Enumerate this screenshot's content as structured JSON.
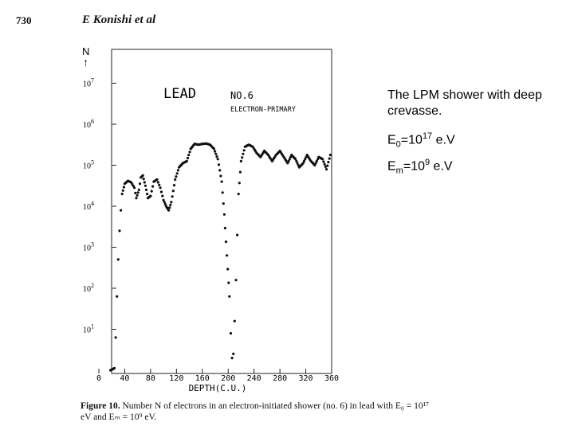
{
  "header": {
    "page_number": "730",
    "running_head": "E Konishi et al"
  },
  "side_note": {
    "line1": "The LPM shower with deep crevasse.",
    "e0_prefix": "E",
    "e0_sub": "0",
    "e0_mid": "=10",
    "e0_sup": "17",
    "e0_unit": " e.V",
    "em_prefix": "E",
    "em_sub": "m",
    "em_mid": "=10",
    "em_sup": "9",
    "em_unit": " e.V"
  },
  "caption": {
    "figure_label": "Figure 10.",
    "text": " Number N of electrons in an electron-initiated shower (no. 6) in lead with E₀ = 10¹⁷ eV and Eₘ = 10⁹ eV."
  },
  "chart_data": {
    "type": "scatter",
    "xlabel": "DEPTH(C.U.)",
    "ylabel": "N",
    "ylabel_arrow": "↑",
    "xlim": [
      0,
      360
    ],
    "ylim_log10": [
      0,
      7.5
    ],
    "x_ticks": [
      "0",
      "40",
      "80",
      "120",
      "160",
      "200",
      "240",
      "280",
      "320",
      "360"
    ],
    "y_ticks": [
      {
        "base": "10",
        "exp": "1"
      },
      {
        "base": "10",
        "exp": "2"
      },
      {
        "base": "10",
        "exp": "3"
      },
      {
        "base": "10",
        "exp": "4"
      },
      {
        "base": "10",
        "exp": "5"
      },
      {
        "base": "10",
        "exp": "6"
      },
      {
        "base": "10",
        "exp": "7"
      }
    ],
    "annotations": {
      "material": "LEAD",
      "shower_no": "NO.6",
      "primary": "ELECTRON-PRIMARY"
    },
    "log10_N_profile": [
      [
        18,
        0.0
      ],
      [
        24,
        0.05
      ],
      [
        26,
        0.8
      ],
      [
        28,
        1.8
      ],
      [
        30,
        2.7
      ],
      [
        32,
        3.4
      ],
      [
        34,
        3.9
      ],
      [
        36,
        4.3
      ],
      [
        40,
        4.55
      ],
      [
        45,
        4.62
      ],
      [
        50,
        4.58
      ],
      [
        55,
        4.45
      ],
      [
        58,
        4.2
      ],
      [
        62,
        4.4
      ],
      [
        65,
        4.7
      ],
      [
        68,
        4.75
      ],
      [
        72,
        4.5
      ],
      [
        76,
        4.2
      ],
      [
        80,
        4.25
      ],
      [
        85,
        4.6
      ],
      [
        90,
        4.65
      ],
      [
        95,
        4.45
      ],
      [
        100,
        4.15
      ],
      [
        104,
        4.0
      ],
      [
        108,
        3.9
      ],
      [
        112,
        4.1
      ],
      [
        118,
        4.65
      ],
      [
        124,
        4.95
      ],
      [
        130,
        5.05
      ],
      [
        136,
        5.1
      ],
      [
        142,
        5.4
      ],
      [
        148,
        5.52
      ],
      [
        154,
        5.5
      ],
      [
        160,
        5.52
      ],
      [
        166,
        5.53
      ],
      [
        172,
        5.5
      ],
      [
        178,
        5.4
      ],
      [
        184,
        5.15
      ],
      [
        190,
        4.6
      ],
      [
        194,
        3.8
      ],
      [
        198,
        2.8
      ],
      [
        202,
        1.8
      ],
      [
        204,
        0.9
      ],
      [
        206,
        0.3
      ],
      [
        208,
        0.4
      ],
      [
        210,
        1.2
      ],
      [
        212,
        2.2
      ],
      [
        214,
        3.3
      ],
      [
        216,
        4.3
      ],
      [
        220,
        5.1
      ],
      [
        226,
        5.45
      ],
      [
        232,
        5.5
      ],
      [
        238,
        5.45
      ],
      [
        244,
        5.3
      ],
      [
        250,
        5.2
      ],
      [
        256,
        5.35
      ],
      [
        262,
        5.25
      ],
      [
        268,
        5.1
      ],
      [
        274,
        5.25
      ],
      [
        280,
        5.35
      ],
      [
        286,
        5.2
      ],
      [
        292,
        5.05
      ],
      [
        298,
        5.25
      ],
      [
        304,
        5.15
      ],
      [
        310,
        4.95
      ],
      [
        316,
        5.05
      ],
      [
        322,
        5.25
      ],
      [
        328,
        5.1
      ],
      [
        334,
        5.0
      ],
      [
        340,
        5.2
      ],
      [
        346,
        5.15
      ],
      [
        352,
        4.9
      ],
      [
        358,
        5.25
      ]
    ]
  }
}
